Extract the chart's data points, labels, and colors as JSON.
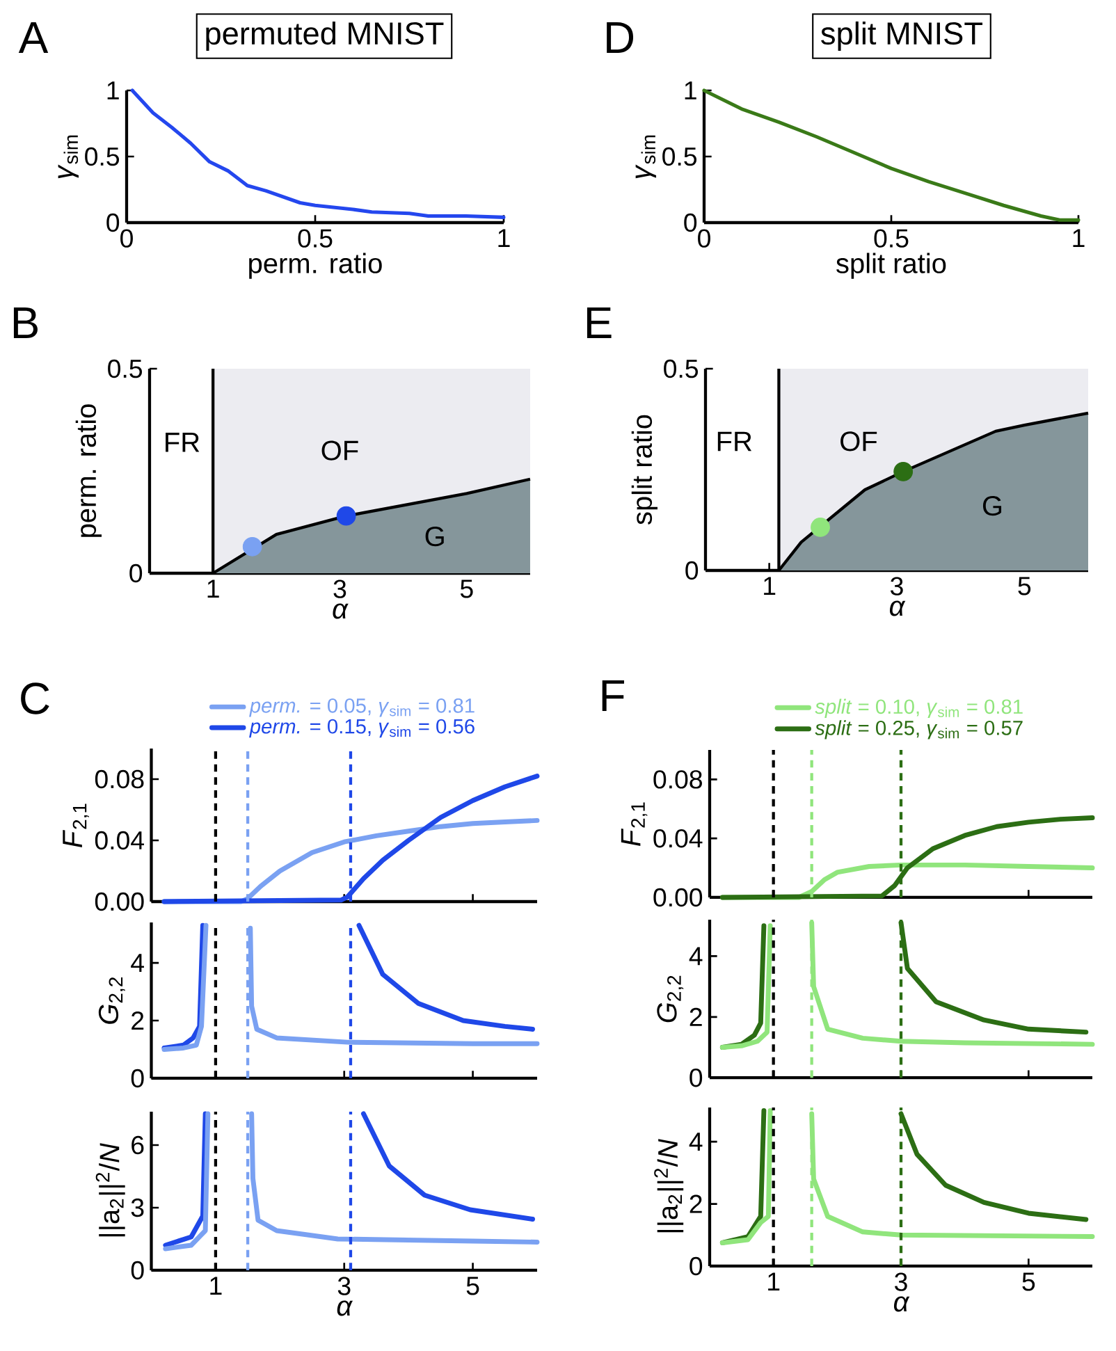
{
  "chart_data": [
    {
      "type": "line",
      "title": "permuted MNIST",
      "xlabel": "perm. ratio",
      "ylabel": "*γ*$_{sim}$",
      "annotations": [
        "A"
      ],
      "xlim": [
        0,
        1
      ],
      "ylim": [
        0,
        1
      ],
      "xticks": [
        0,
        0.5,
        1
      ],
      "yticks": [
        0,
        0.5,
        1
      ],
      "x": [
        0.015,
        0.07,
        0.12,
        0.17,
        0.22,
        0.27,
        0.32,
        0.37,
        0.46,
        0.5,
        0.6,
        0.65,
        0.75,
        0.8,
        0.9,
        1.0
      ],
      "series": [
        {
          "color": "#2447ee",
          "values": [
            1.0,
            0.83,
            0.72,
            0.6,
            0.46,
            0.39,
            0.28,
            0.24,
            0.15,
            0.13,
            0.1,
            0.08,
            0.07,
            0.05,
            0.05,
            0.04
          ]
        }
      ]
    },
    {
      "type": "line",
      "title": "split MNIST",
      "xlabel": "split ratio",
      "ylabel": "*γ*$_{sim}$",
      "annotations": [
        "D"
      ],
      "xlim": [
        0,
        1
      ],
      "ylim": [
        0,
        1
      ],
      "xticks": [
        0,
        0.5,
        1
      ],
      "yticks": [
        0,
        0.5,
        1
      ],
      "x": [
        0,
        0.1,
        0.2,
        0.3,
        0.4,
        0.5,
        0.6,
        0.7,
        0.8,
        0.9,
        0.95,
        1.0
      ],
      "series": [
        {
          "color": "#3a7a18",
          "values": [
            1.0,
            0.86,
            0.76,
            0.65,
            0.53,
            0.41,
            0.31,
            0.22,
            0.13,
            0.05,
            0.02,
            0.02
          ]
        }
      ]
    },
    {
      "type": "area",
      "xlabel": "α",
      "ylabel": "perm. ratio",
      "xlim": [
        0,
        6
      ],
      "ylim": [
        0,
        0.5
      ],
      "xticks": [
        1,
        3,
        5
      ],
      "yticks": [
        0,
        0.5
      ],
      "annotations": [
        "B",
        "FR",
        "OF",
        "G"
      ],
      "ref_lines": [
        {
          "axis": "x",
          "value": 1,
          "color": "#000000"
        }
      ],
      "series": [
        {
          "x": [
            1,
            6
          ],
          "color": "#ececf1",
          "values": [
            0.5,
            0.5
          ]
        },
        {
          "x": [
            1,
            2,
            3.1,
            5,
            6
          ],
          "color": "#85969b",
          "values": [
            0,
            0.095,
            0.14,
            0.195,
            0.23
          ]
        },
        {
          "type": "scatter",
          "marker": "circle",
          "x": [
            1.62
          ],
          "color": "#7aa1f2",
          "values": [
            0.065
          ]
        },
        {
          "type": "scatter",
          "marker": "circle",
          "x": [
            3.1
          ],
          "color": "#1f48e8",
          "values": [
            0.14
          ]
        }
      ]
    },
    {
      "type": "area",
      "xlabel": "α",
      "ylabel": "split ratio",
      "xlim": [
        0,
        6
      ],
      "ylim": [
        0,
        0.5
      ],
      "xticks": [
        1,
        3,
        5
      ],
      "yticks": [
        0,
        0.5
      ],
      "annotations": [
        "E",
        "FR",
        "OF",
        "G"
      ],
      "ref_lines": [
        {
          "axis": "x",
          "value": 1.15,
          "color": "#000000"
        }
      ],
      "series": [
        {
          "x": [
            1.15,
            6
          ],
          "color": "#ececf1",
          "values": [
            0.5,
            0.5
          ]
        },
        {
          "x": [
            1.15,
            1.5,
            2.5,
            3.1,
            4.55,
            5,
            6
          ],
          "color": "#85969b",
          "values": [
            0,
            0.07,
            0.2,
            0.245,
            0.345,
            0.36,
            0.39
          ]
        },
        {
          "type": "scatter",
          "marker": "circle",
          "x": [
            1.8
          ],
          "color": "#90e57c",
          "values": [
            0.107
          ]
        },
        {
          "type": "scatter",
          "marker": "circle",
          "x": [
            3.1
          ],
          "color": "#2c6e14",
          "values": [
            0.245
          ]
        }
      ]
    },
    {
      "type": "line",
      "ylabel": "*F*$_{2,1}$",
      "annotations": [
        "C"
      ],
      "legend": "top",
      "tick_labels": "y",
      "xlim": [
        0,
        6
      ],
      "ylim": [
        0,
        0.1
      ],
      "xticks": [
        1,
        3,
        5
      ],
      "yticks": [
        {
          "value": 0,
          "label": "0.00"
        },
        {
          "value": 0.04,
          "label": "0.04"
        },
        {
          "value": 0.08,
          "label": "0.08"
        }
      ],
      "ref_lines": [
        {
          "axis": "x",
          "value": 1,
          "color": "#000000",
          "line_style": "dashed"
        },
        {
          "axis": "x",
          "value": 1.5,
          "color": "#7aa1f2",
          "line_style": "dashed"
        },
        {
          "axis": "x",
          "value": 3.1,
          "color": "#1f48e8",
          "line_style": "dashed"
        }
      ],
      "series": [
        {
          "name": "*perm.* = 0.05, *γ*$_{sim}$ = 0.81",
          "color": "#7aa1f2",
          "x": [
            0.2,
            1.4,
            1.5,
            1.7,
            2,
            2.5,
            3,
            3.5,
            4,
            4.5,
            5,
            5.5,
            6
          ],
          "values": [
            0,
            0,
            0.002,
            0.01,
            0.02,
            0.032,
            0.039,
            0.043,
            0.046,
            0.049,
            0.051,
            0.052,
            0.053
          ]
        },
        {
          "name": "*perm.* = 0.15, *γ*$_{sim}$ = 0.56",
          "color": "#1f48e8",
          "x": [
            0.2,
            2.95,
            3.05,
            3.3,
            3.6,
            4,
            4.5,
            5,
            5.5,
            6
          ],
          "values": [
            0,
            0.001,
            0.003,
            0.015,
            0.027,
            0.04,
            0.055,
            0.066,
            0.075,
            0.082
          ]
        }
      ]
    },
    {
      "type": "line",
      "ylabel": "*G*$_{2,2}$",
      "tick_labels": "y",
      "xlim": [
        0,
        6
      ],
      "ylim": [
        0,
        5.4
      ],
      "xticks": [
        1,
        3,
        5
      ],
      "yticks": [
        0,
        2,
        4
      ],
      "ref_lines": [
        {
          "axis": "x",
          "value": 1,
          "color": "#000000",
          "line_style": "dashed"
        },
        {
          "axis": "x",
          "value": 1.5,
          "color": "#7aa1f2",
          "line_style": "dashed"
        },
        {
          "axis": "x",
          "value": 3.1,
          "color": "#1f48e8",
          "line_style": "dashed"
        }
      ],
      "series": [
        {
          "color": "#1f48e8",
          "x": [
            0.2,
            0.5,
            0.65,
            0.75,
            0.8,
            2,
            3.23,
            3.6,
            4.15,
            4.85,
            5.5,
            5.93
          ],
          "values": [
            1.05,
            1.15,
            1.4,
            1.8,
            5.3,
            null,
            5.3,
            3.6,
            2.6,
            2.0,
            1.8,
            1.7
          ]
        },
        {
          "color": "#7aa1f2",
          "x": [
            0.2,
            0.5,
            0.7,
            0.78,
            0.85,
            1.2,
            1.54,
            1.56,
            1.64,
            1.95,
            3.05,
            5,
            6
          ],
          "values": [
            1.0,
            1.05,
            1.15,
            1.8,
            5.3,
            null,
            5.2,
            2.5,
            1.7,
            1.4,
            1.25,
            1.2,
            1.2
          ]
        }
      ]
    },
    {
      "type": "line",
      "xlabel": "α",
      "ylabel": "||a$_{2}$||$^{2}$/*N*",
      "xlim": [
        0,
        6
      ],
      "ylim": [
        0,
        7.6
      ],
      "xticks": [
        1,
        3,
        5
      ],
      "yticks": [
        0,
        3,
        6
      ],
      "ref_lines": [
        {
          "axis": "x",
          "value": 1,
          "color": "#000000",
          "line_style": "dashed"
        },
        {
          "axis": "x",
          "value": 1.5,
          "color": "#7aa1f2",
          "line_style": "dashed"
        },
        {
          "axis": "x",
          "value": 3.1,
          "color": "#1f48e8",
          "line_style": "dashed"
        }
      ],
      "series": [
        {
          "color": "#1f48e8",
          "x": [
            0.22,
            0.62,
            0.8,
            0.84,
            2,
            3.3,
            3.7,
            4.25,
            4.96,
            5.93
          ],
          "values": [
            1.2,
            1.6,
            2.6,
            7.5,
            null,
            7.5,
            5.0,
            3.6,
            2.9,
            2.45
          ]
        },
        {
          "color": "#7aa1f2",
          "x": [
            0.22,
            0.62,
            0.84,
            0.88,
            1.2,
            1.56,
            1.58,
            1.66,
            1.95,
            2.9,
            5,
            6
          ],
          "values": [
            1.03,
            1.2,
            1.9,
            7.5,
            null,
            7.5,
            4.4,
            2.4,
            1.9,
            1.5,
            1.4,
            1.35
          ]
        }
      ]
    },
    {
      "type": "line",
      "ylabel": "*F*$_{2,1}$",
      "annotations": [
        "F"
      ],
      "legend": "top",
      "tick_labels": "y",
      "xlim": [
        0,
        6
      ],
      "ylim": [
        0,
        0.1
      ],
      "xticks": [
        1,
        3,
        5
      ],
      "yticks": [
        {
          "value": 0,
          "label": "0.00"
        },
        {
          "value": 0.04,
          "label": "0.04"
        },
        {
          "value": 0.08,
          "label": "0.08"
        }
      ],
      "ref_lines": [
        {
          "axis": "x",
          "value": 1,
          "color": "#000000",
          "line_style": "dashed"
        },
        {
          "axis": "x",
          "value": 1.6,
          "color": "#90e57c",
          "line_style": "dashed"
        },
        {
          "axis": "x",
          "value": 3.0,
          "color": "#2c6e14",
          "line_style": "dashed"
        }
      ],
      "series": [
        {
          "name": "*split* = 0.10, *γ*$_{sim}$ = 0.81",
          "color": "#90e57c",
          "x": [
            0.2,
            1.4,
            1.6,
            1.8,
            2,
            2.5,
            3,
            4,
            5,
            6
          ],
          "values": [
            0,
            0,
            0.004,
            0.012,
            0.017,
            0.021,
            0.022,
            0.022,
            0.021,
            0.02
          ]
        },
        {
          "name": "*split* = 0.25, *γ*$_{sim}$ = 0.57",
          "color": "#2c6e14",
          "x": [
            0.2,
            2.7,
            2.9,
            3.1,
            3.5,
            4,
            4.5,
            5,
            5.5,
            6
          ],
          "values": [
            0,
            0.001,
            0.008,
            0.02,
            0.033,
            0.042,
            0.048,
            0.051,
            0.053,
            0.054
          ]
        }
      ]
    },
    {
      "type": "line",
      "ylabel": "*G*$_{2,2}$",
      "tick_labels": "y",
      "xlim": [
        0,
        6
      ],
      "ylim": [
        0,
        5.2
      ],
      "xticks": [
        1,
        3,
        5
      ],
      "yticks": [
        0,
        2,
        4
      ],
      "ref_lines": [
        {
          "axis": "x",
          "value": 1,
          "color": "#000000",
          "line_style": "dashed"
        },
        {
          "axis": "x",
          "value": 1.6,
          "color": "#90e57c",
          "line_style": "dashed"
        },
        {
          "axis": "x",
          "value": 3.0,
          "color": "#2c6e14",
          "line_style": "dashed"
        }
      ],
      "series": [
        {
          "color": "#2c6e14",
          "x": [
            0.2,
            0.5,
            0.7,
            0.8,
            0.85,
            2,
            3.0,
            3.1,
            3.55,
            4.3,
            5.0,
            5.9
          ],
          "values": [
            1.0,
            1.1,
            1.4,
            1.8,
            5.0,
            null,
            5.1,
            3.6,
            2.5,
            1.9,
            1.6,
            1.5
          ]
        },
        {
          "color": "#90e57c",
          "x": [
            0.2,
            0.5,
            0.75,
            0.9,
            0.95,
            1.2,
            1.6,
            1.63,
            1.85,
            2.4,
            3,
            4,
            6
          ],
          "values": [
            1.0,
            1.05,
            1.2,
            1.5,
            5.0,
            null,
            5.1,
            3.0,
            1.6,
            1.3,
            1.2,
            1.15,
            1.1
          ]
        }
      ]
    },
    {
      "type": "line",
      "xlabel": "α",
      "ylabel": "||a$_{2}$||$^{2}$/*N*",
      "xlim": [
        0,
        6
      ],
      "ylim": [
        0,
        5.1
      ],
      "xticks": [
        1,
        3,
        5
      ],
      "yticks": [
        0,
        2,
        4
      ],
      "ref_lines": [
        {
          "axis": "x",
          "value": 1,
          "color": "#000000",
          "line_style": "dashed"
        },
        {
          "axis": "x",
          "value": 1.6,
          "color": "#90e57c",
          "line_style": "dashed"
        },
        {
          "axis": "x",
          "value": 3.0,
          "color": "#2c6e14",
          "line_style": "dashed"
        }
      ],
      "series": [
        {
          "color": "#2c6e14",
          "x": [
            0.2,
            0.6,
            0.8,
            0.85,
            2,
            3.0,
            3.25,
            3.7,
            4.3,
            5.0,
            5.9
          ],
          "values": [
            0.75,
            0.95,
            1.6,
            5.0,
            null,
            4.9,
            3.6,
            2.6,
            2.05,
            1.7,
            1.5
          ]
        },
        {
          "color": "#90e57c",
          "x": [
            0.2,
            0.6,
            0.8,
            0.92,
            0.95,
            1.2,
            1.6,
            1.63,
            1.85,
            2.4,
            3,
            6
          ],
          "values": [
            0.75,
            0.85,
            1.4,
            1.6,
            5.0,
            null,
            4.9,
            2.8,
            1.6,
            1.1,
            1.0,
            0.95
          ]
        }
      ]
    }
  ]
}
